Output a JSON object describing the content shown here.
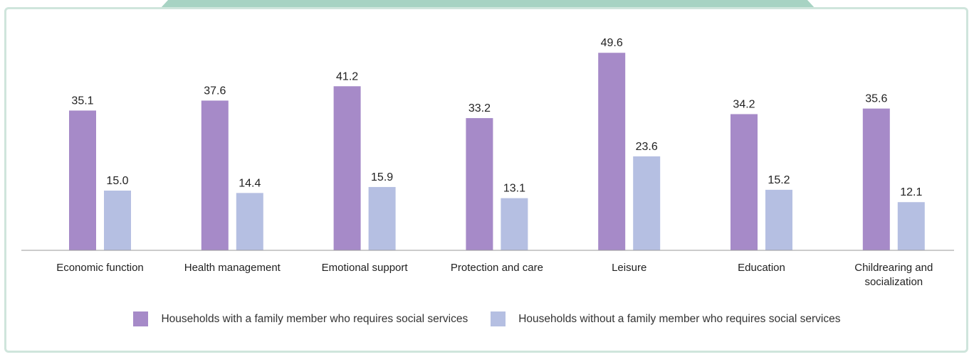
{
  "chart_data": {
    "type": "bar",
    "title": "",
    "xlabel": "",
    "ylabel": "",
    "ylim": [
      0,
      50
    ],
    "grid": false,
    "legend_position": "bottom",
    "categories": [
      "Economic function",
      "Health management",
      "Emotional support",
      "Protection and care",
      "Leisure",
      "Education",
      "Childrearing and socialization"
    ],
    "series": [
      {
        "name": "Households with a family member who requires social services",
        "color": "#a68ac8",
        "values": [
          35.1,
          37.6,
          41.2,
          33.2,
          49.6,
          34.2,
          35.6
        ]
      },
      {
        "name": "Households without a family member who requires social services",
        "color": "#b5bfe2",
        "values": [
          15.0,
          14.4,
          15.9,
          13.1,
          23.6,
          15.2,
          12.1
        ]
      }
    ]
  }
}
